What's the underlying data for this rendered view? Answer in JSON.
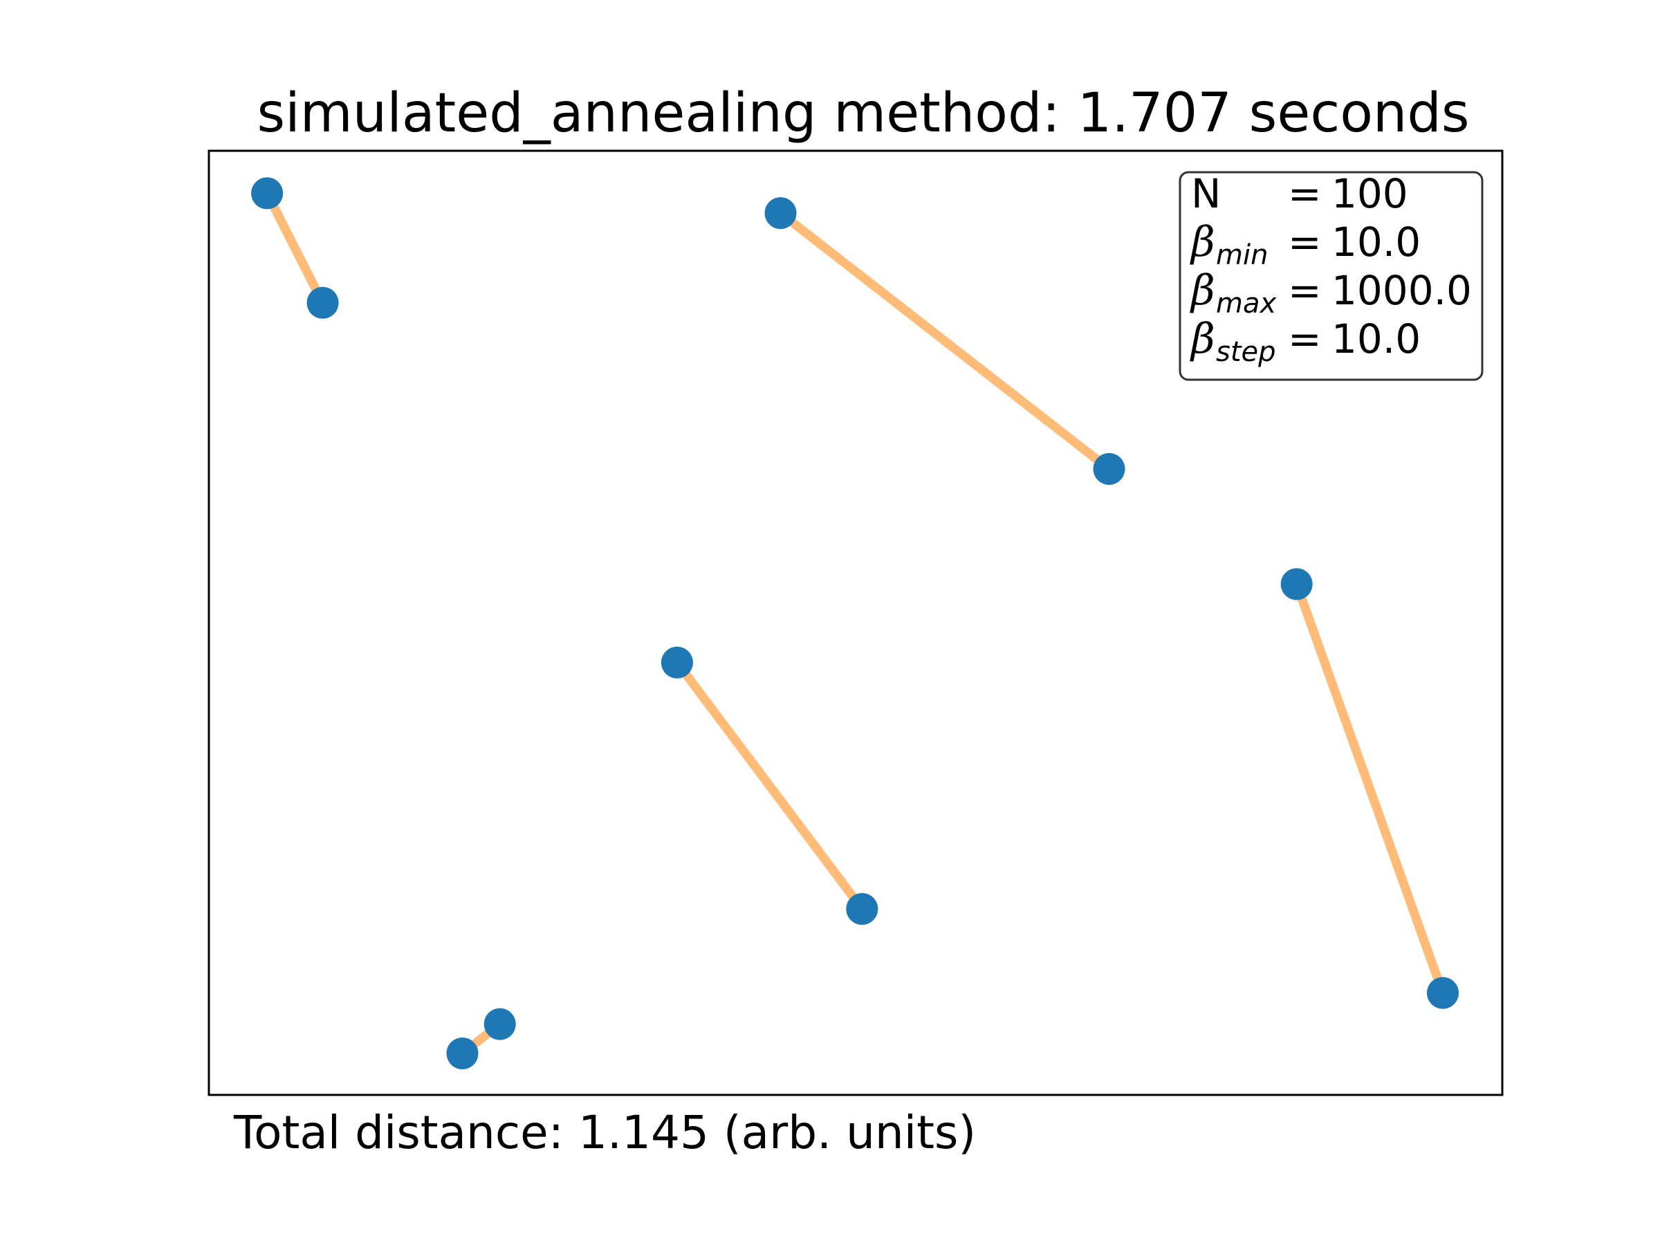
{
  "chart_data": {
    "type": "line",
    "title": "simulated_annealing method: 1.707 seconds",
    "footer": "Total distance: 1.145 (arb. units)",
    "xlim": [
      0,
      1
    ],
    "ylim": [
      0,
      1
    ],
    "axis_ticks_visible": false,
    "grid": false,
    "colors": {
      "point": "#1f77b4",
      "path": "#ffbb78",
      "frame": "#000000"
    },
    "points": [
      {
        "x": 0.045,
        "y": 0.955
      },
      {
        "x": 0.088,
        "y": 0.839
      },
      {
        "x": 0.442,
        "y": 0.934
      },
      {
        "x": 0.696,
        "y": 0.663
      },
      {
        "x": 0.841,
        "y": 0.541
      },
      {
        "x": 0.954,
        "y": 0.108
      },
      {
        "x": 0.362,
        "y": 0.458
      },
      {
        "x": 0.505,
        "y": 0.197
      },
      {
        "x": 0.196,
        "y": 0.044
      },
      {
        "x": 0.225,
        "y": 0.075
      }
    ],
    "segments": [
      [
        0,
        1
      ],
      [
        2,
        3
      ],
      [
        4,
        5
      ],
      [
        6,
        7
      ],
      [
        8,
        9
      ]
    ],
    "legend": {
      "placement": "top-right",
      "rows": [
        {
          "symbol": "N",
          "subscript": "",
          "eq": "=",
          "value": "100"
        },
        {
          "symbol": "β",
          "subscript": "min",
          "eq": "=",
          "value": "10.0"
        },
        {
          "symbol": "β",
          "subscript": "max",
          "eq": "=",
          "value": "1000.0"
        },
        {
          "symbol": "β",
          "subscript": "step",
          "eq": "=",
          "value": "10.0"
        }
      ]
    }
  }
}
